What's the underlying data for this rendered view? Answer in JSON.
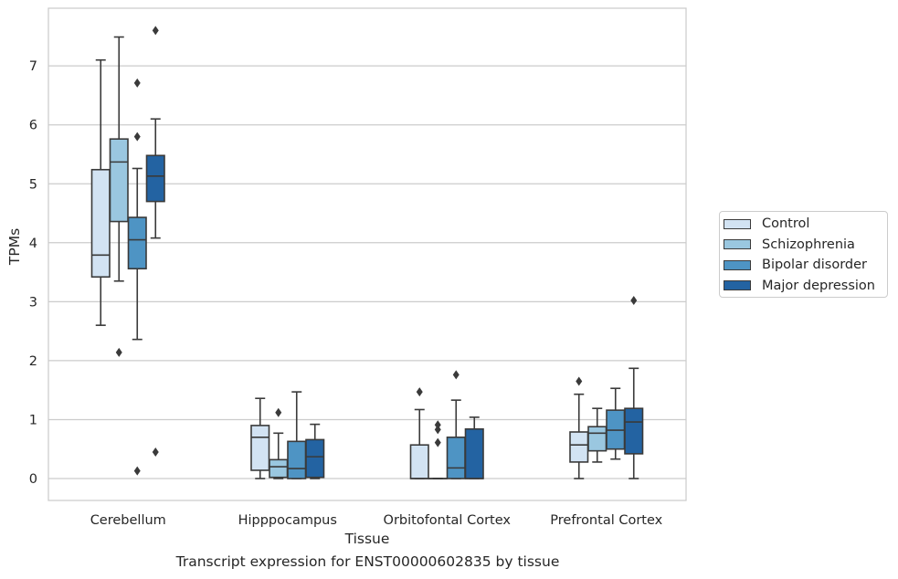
{
  "caption": "Transcript expression for ENST00000602835 by tissue",
  "chart_data": {
    "type": "box",
    "title": "",
    "xlabel": "Tissue",
    "ylabel": "TPMs",
    "ylim": [
      -0.38,
      7.95
    ],
    "yticks": [
      0,
      1,
      2,
      3,
      4,
      5,
      6,
      7
    ],
    "grid": "horizontal",
    "legend_position": "right",
    "categories": [
      "Cerebellum",
      "Hipppocampus",
      "Orbitofontal Cortex",
      "Prefrontal Cortex"
    ],
    "series": [
      {
        "name": "Control",
        "color": "#d2e3f3",
        "boxes": [
          {
            "whislo": 2.6,
            "q1": 3.42,
            "med": 3.79,
            "q3": 5.24,
            "whishi": 7.1,
            "fliers": []
          },
          {
            "whislo": 0.0,
            "q1": 0.14,
            "med": 0.7,
            "q3": 0.9,
            "whishi": 1.36,
            "fliers": []
          },
          {
            "whislo": 0.0,
            "q1": 0.0,
            "med": 0.0,
            "q3": 0.57,
            "whishi": 1.17,
            "fliers": [
              1.47
            ]
          },
          {
            "whislo": 0.0,
            "q1": 0.28,
            "med": 0.57,
            "q3": 0.79,
            "whishi": 1.43,
            "fliers": [
              1.65
            ]
          }
        ]
      },
      {
        "name": "Schizophrenia",
        "color": "#9ac7e0",
        "boxes": [
          {
            "whislo": 3.35,
            "q1": 4.36,
            "med": 5.37,
            "q3": 5.76,
            "whishi": 7.49,
            "fliers": [
              2.14
            ]
          },
          {
            "whislo": 0.0,
            "q1": 0.02,
            "med": 0.2,
            "q3": 0.32,
            "whishi": 0.77,
            "fliers": [
              1.12
            ]
          },
          {
            "whislo": 0.0,
            "q1": 0.0,
            "med": 0.0,
            "q3": 0.0,
            "whishi": 0.0,
            "fliers": [
              0.61,
              0.83,
              0.91
            ]
          },
          {
            "whislo": 0.28,
            "q1": 0.47,
            "med": 0.77,
            "q3": 0.88,
            "whishi": 1.19,
            "fliers": []
          }
        ]
      },
      {
        "name": "Bipolar disorder",
        "color": "#4e94c4",
        "boxes": [
          {
            "whislo": 2.36,
            "q1": 3.56,
            "med": 4.05,
            "q3": 4.43,
            "whishi": 5.26,
            "fliers": [
              0.13,
              5.8,
              6.71
            ]
          },
          {
            "whislo": 0.0,
            "q1": 0.0,
            "med": 0.17,
            "q3": 0.63,
            "whishi": 1.47,
            "fliers": []
          },
          {
            "whislo": 0.0,
            "q1": 0.0,
            "med": 0.18,
            "q3": 0.7,
            "whishi": 1.33,
            "fliers": [
              1.76
            ]
          },
          {
            "whislo": 0.33,
            "q1": 0.5,
            "med": 0.82,
            "q3": 1.16,
            "whishi": 1.53,
            "fliers": []
          }
        ]
      },
      {
        "name": "Major depression",
        "color": "#2363a2",
        "boxes": [
          {
            "whislo": 4.08,
            "q1": 4.7,
            "med": 5.13,
            "q3": 5.48,
            "whishi": 6.1,
            "fliers": [
              0.45,
              7.6
            ]
          },
          {
            "whislo": 0.0,
            "q1": 0.02,
            "med": 0.37,
            "q3": 0.66,
            "whishi": 0.92,
            "fliers": []
          },
          {
            "whislo": 0.0,
            "q1": 0.0,
            "med": 0.0,
            "q3": 0.84,
            "whishi": 1.04,
            "fliers": []
          },
          {
            "whislo": 0.0,
            "q1": 0.42,
            "med": 0.96,
            "q3": 1.19,
            "whishi": 1.87,
            "fliers": [
              3.02
            ]
          }
        ]
      }
    ]
  }
}
